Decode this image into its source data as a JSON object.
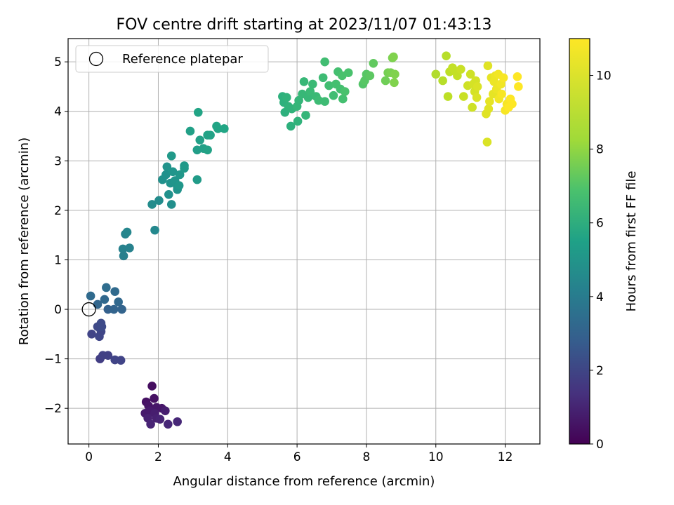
{
  "chart_data": {
    "type": "scatter",
    "title": "FOV centre drift starting at 2023/11/07 01:43:13",
    "xlabel": "Angular distance from reference (arcmin)",
    "ylabel": "Rotation from reference (arcmin)",
    "xlim": [
      -0.6,
      13.0
    ],
    "ylim": [
      -2.72,
      5.47
    ],
    "xticks": [
      0,
      2,
      4,
      6,
      8,
      10,
      12
    ],
    "yticks": [
      -2,
      -1,
      0,
      1,
      2,
      3,
      4,
      5
    ],
    "xtick_labels": [
      "0",
      "2",
      "4",
      "6",
      "8",
      "10",
      "12"
    ],
    "ytick_labels": [
      "−2",
      "−1",
      "0",
      "1",
      "2",
      "3",
      "4",
      "5"
    ],
    "grid": true,
    "legend": {
      "position": "top-left",
      "entries": [
        {
          "label": "Reference platepar",
          "marker": "open-circle"
        }
      ]
    },
    "reference_point": {
      "x": 0,
      "y": 0
    },
    "colorbar": {
      "label": "Hours from first FF file",
      "colormap": "viridis",
      "range": [
        0,
        11
      ],
      "ticks": [
        0,
        2,
        4,
        6,
        8,
        10
      ],
      "tick_labels": [
        "0",
        "2",
        "4",
        "6",
        "8",
        "10"
      ]
    },
    "points": [
      {
        "x": 1.82,
        "y": -1.55,
        "c": 0.4
      },
      {
        "x": 1.65,
        "y": -1.87,
        "c": 0.5
      },
      {
        "x": 1.88,
        "y": -1.8,
        "c": 0.5
      },
      {
        "x": 1.72,
        "y": -1.95,
        "c": 0.6
      },
      {
        "x": 1.95,
        "y": -1.98,
        "c": 0.7
      },
      {
        "x": 2.1,
        "y": -2.0,
        "c": 0.7
      },
      {
        "x": 1.62,
        "y": -2.1,
        "c": 0.8
      },
      {
        "x": 1.75,
        "y": -2.05,
        "c": 0.8
      },
      {
        "x": 1.9,
        "y": -2.1,
        "c": 0.9
      },
      {
        "x": 2.2,
        "y": -2.05,
        "c": 0.9
      },
      {
        "x": 1.7,
        "y": -2.2,
        "c": 1.0
      },
      {
        "x": 1.95,
        "y": -2.2,
        "c": 1.0
      },
      {
        "x": 2.05,
        "y": -2.22,
        "c": 1.1
      },
      {
        "x": 1.78,
        "y": -2.32,
        "c": 1.1
      },
      {
        "x": 2.28,
        "y": -2.32,
        "c": 1.2
      },
      {
        "x": 2.55,
        "y": -2.27,
        "c": 1.2
      },
      {
        "x": 0.08,
        "y": -0.5,
        "c": 2.2
      },
      {
        "x": 0.3,
        "y": -0.55,
        "c": 2.3
      },
      {
        "x": 0.35,
        "y": -0.45,
        "c": 2.3
      },
      {
        "x": 0.25,
        "y": -0.35,
        "c": 2.4
      },
      {
        "x": 0.35,
        "y": -0.28,
        "c": 2.5
      },
      {
        "x": 0.37,
        "y": -0.35,
        "c": 2.5
      },
      {
        "x": 0.32,
        "y": -1.0,
        "c": 2.0
      },
      {
        "x": 0.4,
        "y": -0.93,
        "c": 2.1
      },
      {
        "x": 0.55,
        "y": -0.93,
        "c": 2.1
      },
      {
        "x": 0.75,
        "y": -1.02,
        "c": 2.2
      },
      {
        "x": 0.92,
        "y": -1.03,
        "c": 2.2
      },
      {
        "x": 0.05,
        "y": 0.27,
        "c": 3.8
      },
      {
        "x": 0.25,
        "y": 0.1,
        "c": 3.6
      },
      {
        "x": 0.45,
        "y": 0.2,
        "c": 3.7
      },
      {
        "x": 0.5,
        "y": 0.44,
        "c": 3.9
      },
      {
        "x": 0.55,
        "y": 0.0,
        "c": 3.4
      },
      {
        "x": 0.72,
        "y": 0.0,
        "c": 3.5
      },
      {
        "x": 0.75,
        "y": 0.36,
        "c": 3.8
      },
      {
        "x": 0.85,
        "y": 0.15,
        "c": 3.7
      },
      {
        "x": 0.95,
        "y": 0.0,
        "c": 3.5
      },
      {
        "x": 0.98,
        "y": 1.22,
        "c": 4.8
      },
      {
        "x": 1.0,
        "y": 1.08,
        "c": 4.7
      },
      {
        "x": 1.05,
        "y": 1.52,
        "c": 4.9
      },
      {
        "x": 1.1,
        "y": 1.56,
        "c": 5.0
      },
      {
        "x": 1.17,
        "y": 1.24,
        "c": 4.8
      },
      {
        "x": 1.9,
        "y": 1.6,
        "c": 5.1
      },
      {
        "x": 1.82,
        "y": 2.12,
        "c": 5.3
      },
      {
        "x": 2.02,
        "y": 2.2,
        "c": 5.3
      },
      {
        "x": 2.38,
        "y": 2.12,
        "c": 5.4
      },
      {
        "x": 2.12,
        "y": 2.62,
        "c": 5.5
      },
      {
        "x": 2.22,
        "y": 2.72,
        "c": 5.5
      },
      {
        "x": 2.25,
        "y": 2.88,
        "c": 5.6
      },
      {
        "x": 2.35,
        "y": 2.55,
        "c": 5.6
      },
      {
        "x": 2.42,
        "y": 2.78,
        "c": 5.7
      },
      {
        "x": 2.48,
        "y": 2.6,
        "c": 5.7
      },
      {
        "x": 2.55,
        "y": 2.48,
        "c": 5.7
      },
      {
        "x": 2.3,
        "y": 2.32,
        "c": 5.5
      },
      {
        "x": 2.55,
        "y": 2.42,
        "c": 5.6
      },
      {
        "x": 2.62,
        "y": 2.72,
        "c": 5.8
      },
      {
        "x": 2.75,
        "y": 2.9,
        "c": 5.9
      },
      {
        "x": 2.75,
        "y": 2.85,
        "c": 5.9
      },
      {
        "x": 2.38,
        "y": 3.1,
        "c": 5.9
      },
      {
        "x": 2.6,
        "y": 2.5,
        "c": 5.8
      },
      {
        "x": 3.12,
        "y": 2.62,
        "c": 6.0
      },
      {
        "x": 2.92,
        "y": 3.6,
        "c": 6.2
      },
      {
        "x": 3.12,
        "y": 3.22,
        "c": 6.1
      },
      {
        "x": 3.2,
        "y": 3.42,
        "c": 6.2
      },
      {
        "x": 3.3,
        "y": 3.25,
        "c": 6.2
      },
      {
        "x": 3.42,
        "y": 3.22,
        "c": 6.3
      },
      {
        "x": 3.42,
        "y": 3.52,
        "c": 6.3
      },
      {
        "x": 3.5,
        "y": 3.52,
        "c": 6.3
      },
      {
        "x": 3.68,
        "y": 3.7,
        "c": 6.4
      },
      {
        "x": 3.72,
        "y": 3.65,
        "c": 6.4
      },
      {
        "x": 3.9,
        "y": 3.65,
        "c": 6.5
      },
      {
        "x": 3.15,
        "y": 3.98,
        "c": 6.4
      },
      {
        "x": 5.58,
        "y": 4.3,
        "c": 7.0
      },
      {
        "x": 5.62,
        "y": 4.18,
        "c": 7.0
      },
      {
        "x": 5.7,
        "y": 4.28,
        "c": 7.1
      },
      {
        "x": 5.65,
        "y": 3.98,
        "c": 7.0
      },
      {
        "x": 5.75,
        "y": 4.1,
        "c": 7.1
      },
      {
        "x": 5.85,
        "y": 4.05,
        "c": 7.1
      },
      {
        "x": 5.82,
        "y": 3.7,
        "c": 7.0
      },
      {
        "x": 6.02,
        "y": 3.8,
        "c": 7.1
      },
      {
        "x": 6.0,
        "y": 4.1,
        "c": 7.2
      },
      {
        "x": 6.05,
        "y": 4.22,
        "c": 7.2
      },
      {
        "x": 6.15,
        "y": 4.35,
        "c": 7.3
      },
      {
        "x": 6.2,
        "y": 4.6,
        "c": 7.3
      },
      {
        "x": 6.25,
        "y": 3.92,
        "c": 7.2
      },
      {
        "x": 6.32,
        "y": 4.28,
        "c": 7.3
      },
      {
        "x": 6.38,
        "y": 4.4,
        "c": 7.4
      },
      {
        "x": 6.45,
        "y": 4.55,
        "c": 7.4
      },
      {
        "x": 6.55,
        "y": 4.3,
        "c": 7.4
      },
      {
        "x": 6.62,
        "y": 4.22,
        "c": 7.5
      },
      {
        "x": 6.75,
        "y": 4.68,
        "c": 7.5
      },
      {
        "x": 6.8,
        "y": 4.2,
        "c": 7.5
      },
      {
        "x": 6.8,
        "y": 5.0,
        "c": 7.6
      },
      {
        "x": 6.92,
        "y": 4.52,
        "c": 7.6
      },
      {
        "x": 7.05,
        "y": 4.32,
        "c": 7.6
      },
      {
        "x": 7.12,
        "y": 4.55,
        "c": 7.7
      },
      {
        "x": 7.18,
        "y": 4.8,
        "c": 7.7
      },
      {
        "x": 7.25,
        "y": 4.45,
        "c": 7.7
      },
      {
        "x": 7.3,
        "y": 4.72,
        "c": 7.8
      },
      {
        "x": 7.32,
        "y": 4.25,
        "c": 7.7
      },
      {
        "x": 7.38,
        "y": 4.4,
        "c": 7.8
      },
      {
        "x": 7.48,
        "y": 4.78,
        "c": 7.8
      },
      {
        "x": 7.9,
        "y": 4.55,
        "c": 8.0
      },
      {
        "x": 7.95,
        "y": 4.62,
        "c": 8.1
      },
      {
        "x": 8.0,
        "y": 4.75,
        "c": 8.1
      },
      {
        "x": 8.1,
        "y": 4.72,
        "c": 8.2
      },
      {
        "x": 8.2,
        "y": 4.97,
        "c": 8.3
      },
      {
        "x": 8.55,
        "y": 4.62,
        "c": 8.6
      },
      {
        "x": 8.62,
        "y": 4.78,
        "c": 8.7
      },
      {
        "x": 8.7,
        "y": 4.78,
        "c": 8.8
      },
      {
        "x": 8.75,
        "y": 5.08,
        "c": 8.8
      },
      {
        "x": 8.78,
        "y": 5.1,
        "c": 8.9
      },
      {
        "x": 8.8,
        "y": 4.58,
        "c": 8.9
      },
      {
        "x": 8.82,
        "y": 4.75,
        "c": 8.9
      },
      {
        "x": 10.0,
        "y": 4.75,
        "c": 9.7
      },
      {
        "x": 10.2,
        "y": 4.62,
        "c": 9.8
      },
      {
        "x": 10.3,
        "y": 5.12,
        "c": 9.8
      },
      {
        "x": 10.35,
        "y": 4.3,
        "c": 9.9
      },
      {
        "x": 10.4,
        "y": 4.8,
        "c": 9.9
      },
      {
        "x": 10.48,
        "y": 4.88,
        "c": 10.0
      },
      {
        "x": 10.55,
        "y": 4.82,
        "c": 10.0
      },
      {
        "x": 10.62,
        "y": 4.72,
        "c": 10.0
      },
      {
        "x": 10.72,
        "y": 4.85,
        "c": 10.1
      },
      {
        "x": 10.8,
        "y": 4.3,
        "c": 10.1
      },
      {
        "x": 10.92,
        "y": 4.52,
        "c": 10.2
      },
      {
        "x": 11.0,
        "y": 4.75,
        "c": 10.2
      },
      {
        "x": 11.05,
        "y": 4.08,
        "c": 10.2
      },
      {
        "x": 11.08,
        "y": 4.55,
        "c": 10.3
      },
      {
        "x": 11.12,
        "y": 4.4,
        "c": 10.3
      },
      {
        "x": 11.15,
        "y": 4.62,
        "c": 10.3
      },
      {
        "x": 11.18,
        "y": 4.28,
        "c": 10.4
      },
      {
        "x": 11.2,
        "y": 4.5,
        "c": 10.4
      },
      {
        "x": 11.45,
        "y": 3.95,
        "c": 10.5
      },
      {
        "x": 11.48,
        "y": 3.38,
        "c": 10.4
      },
      {
        "x": 11.5,
        "y": 4.92,
        "c": 10.5
      },
      {
        "x": 11.52,
        "y": 4.05,
        "c": 10.5
      },
      {
        "x": 11.55,
        "y": 4.2,
        "c": 10.6
      },
      {
        "x": 11.6,
        "y": 4.68,
        "c": 10.6
      },
      {
        "x": 11.65,
        "y": 4.35,
        "c": 10.6
      },
      {
        "x": 11.68,
        "y": 4.6,
        "c": 10.7
      },
      {
        "x": 11.72,
        "y": 4.72,
        "c": 10.7
      },
      {
        "x": 11.75,
        "y": 4.45,
        "c": 10.7
      },
      {
        "x": 11.8,
        "y": 4.75,
        "c": 10.8
      },
      {
        "x": 11.82,
        "y": 4.25,
        "c": 10.8
      },
      {
        "x": 11.88,
        "y": 4.55,
        "c": 10.8
      },
      {
        "x": 11.9,
        "y": 4.35,
        "c": 10.9
      },
      {
        "x": 11.95,
        "y": 4.68,
        "c": 10.9
      },
      {
        "x": 12.0,
        "y": 4.02,
        "c": 10.9
      },
      {
        "x": 12.05,
        "y": 4.15,
        "c": 10.9
      },
      {
        "x": 12.1,
        "y": 4.08,
        "c": 11.0
      },
      {
        "x": 12.15,
        "y": 4.25,
        "c": 11.0
      },
      {
        "x": 12.2,
        "y": 4.15,
        "c": 11.0
      },
      {
        "x": 12.35,
        "y": 4.7,
        "c": 11.0
      },
      {
        "x": 12.38,
        "y": 4.5,
        "c": 11.0
      }
    ]
  }
}
